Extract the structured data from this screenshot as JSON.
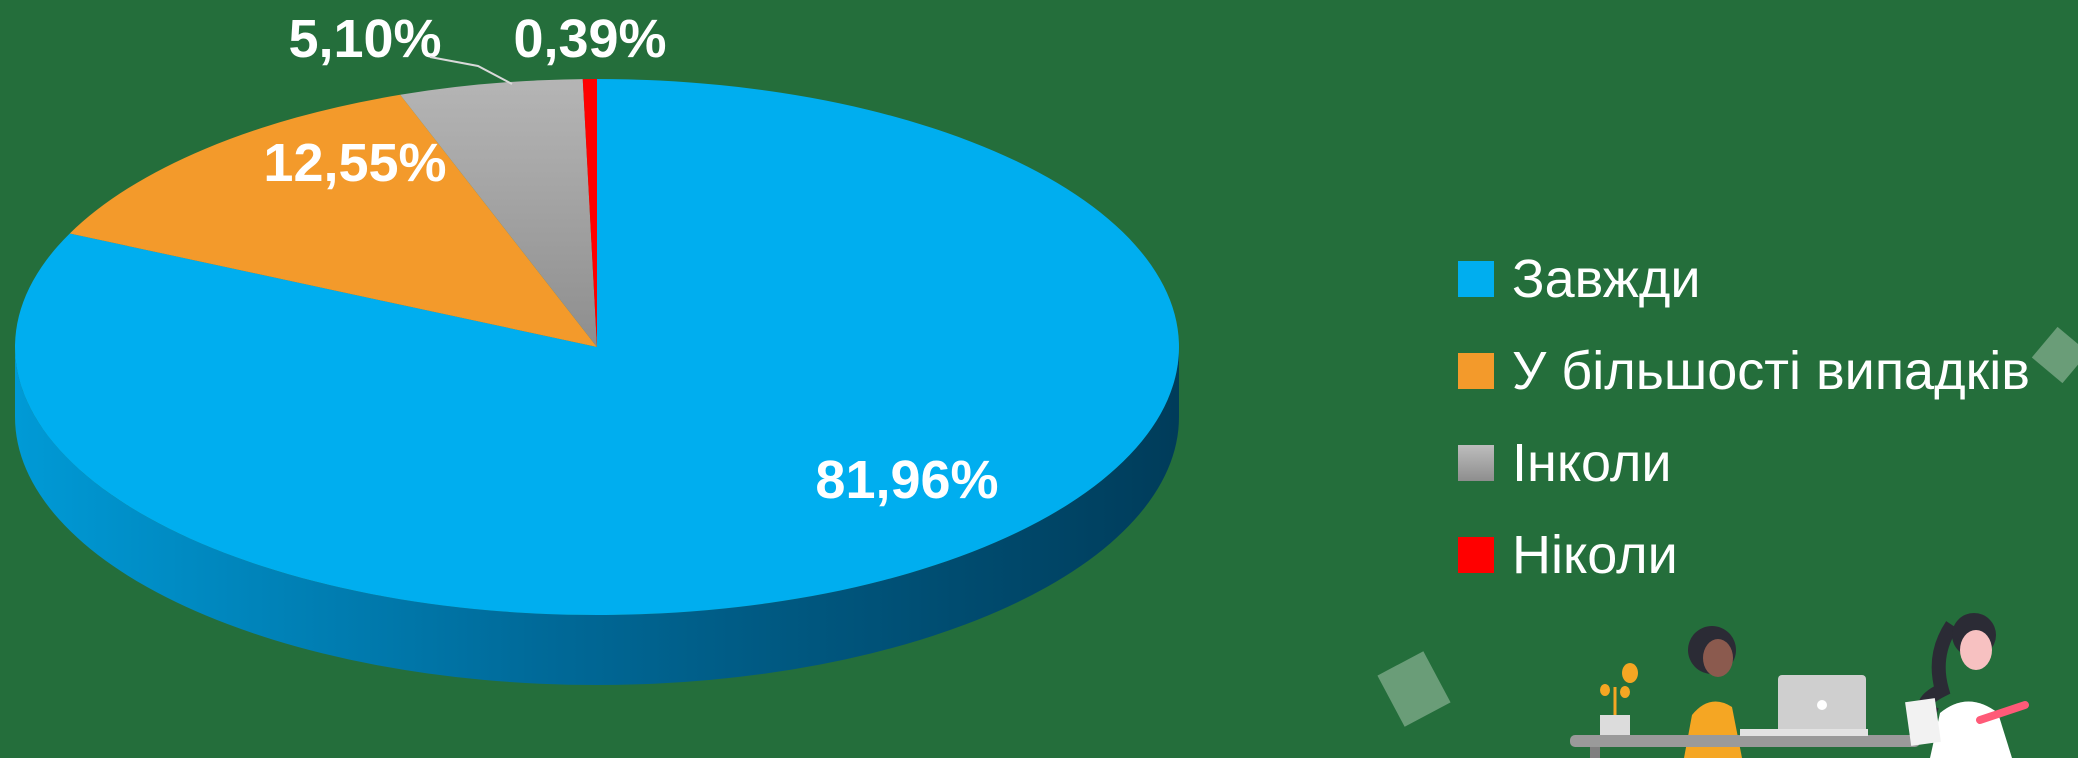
{
  "chart_data": {
    "type": "pie",
    "style": "3d",
    "title": "",
    "categories": [
      "Завжди",
      "У більшості випадків",
      "Інколи",
      "Ніколи"
    ],
    "values": [
      81.96,
      12.55,
      5.1,
      0.39
    ],
    "data_labels": [
      "81,96%",
      "12,55%",
      "5,10%",
      "0,39%"
    ],
    "colors": [
      "#00aeef",
      "#f39a2b",
      "#a8a8a8",
      "#ff0000"
    ],
    "start_angle": "12 o'clock",
    "direction": "clockwise",
    "legend": {
      "placement": "right",
      "entries": [
        "Завжди",
        "У більшості випадків",
        "Інколи",
        "Ніколи"
      ]
    }
  },
  "decoration": {
    "illustration": "two-people-at-desk-with-laptop"
  }
}
